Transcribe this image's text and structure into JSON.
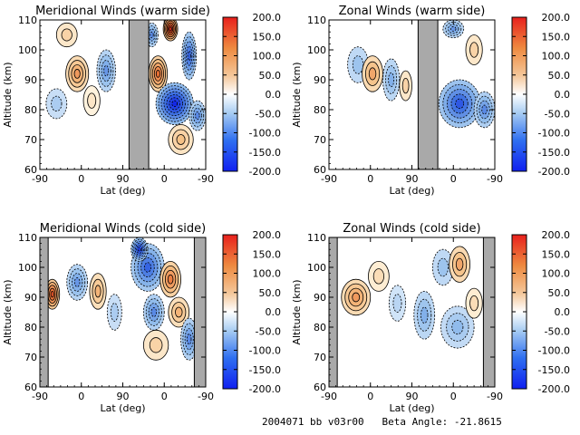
{
  "colors": {
    "positive": "#e8201c",
    "negative": "#1535f0",
    "gap": "#a9a9a9",
    "line": "#000000"
  },
  "colorbar": {
    "ticks": [
      "200.0",
      "150.0",
      "100.0",
      "50.0",
      "0.0",
      "-50.0",
      "-100.0",
      "-150.0",
      "-200.0"
    ],
    "range": [
      -200,
      200
    ]
  },
  "footer": "2004071 bb v03r00   Beta Angle: -21.8615",
  "chart_data": [
    {
      "type": "heatmap",
      "title": "Meridional Winds (warm side)",
      "xlabel": "Lat (deg)",
      "ylabel": "Altitude (km)",
      "xticks": [
        "-90",
        "0",
        "90",
        "0",
        "-90"
      ],
      "yticks": [
        "60",
        "70",
        "80",
        "90",
        "100",
        "110"
      ],
      "ylim": [
        60,
        110
      ],
      "clim": [
        -200,
        200
      ],
      "gap_regions": [
        [
          4.3,
          5.25
        ]
      ],
      "blobs": [
        {
          "x": 1.8,
          "y": 92,
          "rx": 0.55,
          "ry": 6,
          "v": 110
        },
        {
          "x": 3.2,
          "y": 93,
          "rx": 0.45,
          "ry": 7,
          "v": -110
        },
        {
          "x": 0.8,
          "y": 82,
          "rx": 0.5,
          "ry": 5,
          "v": -60
        },
        {
          "x": 1.3,
          "y": 105,
          "rx": 0.5,
          "ry": 4,
          "v": 60
        },
        {
          "x": 2.5,
          "y": 83,
          "rx": 0.4,
          "ry": 5,
          "v": 40
        },
        {
          "x": 6.3,
          "y": 107,
          "rx": 0.35,
          "ry": 4,
          "v": 190
        },
        {
          "x": 5.7,
          "y": 92,
          "rx": 0.45,
          "ry": 6,
          "v": 140
        },
        {
          "x": 6.5,
          "y": 82,
          "rx": 0.9,
          "ry": 7,
          "v": -200
        },
        {
          "x": 7.2,
          "y": 98,
          "rx": 0.35,
          "ry": 8,
          "v": -150
        },
        {
          "x": 6.8,
          "y": 70,
          "rx": 0.6,
          "ry": 5,
          "v": 80
        },
        {
          "x": 5.4,
          "y": 105,
          "rx": 0.3,
          "ry": 4,
          "v": -120
        },
        {
          "x": 7.6,
          "y": 78,
          "rx": 0.4,
          "ry": 5,
          "v": -120
        }
      ]
    },
    {
      "type": "heatmap",
      "title": "Zonal Winds (warm side)",
      "xlabel": "Lat (deg)",
      "ylabel": "Altitude (km)",
      "xticks": [
        "-90",
        "0",
        "90",
        "0",
        "-90"
      ],
      "yticks": [
        "60",
        "70",
        "80",
        "90",
        "100",
        "110"
      ],
      "ylim": [
        60,
        110
      ],
      "clim": [
        -200,
        200
      ],
      "gap_regions": [
        [
          4.3,
          5.25
        ]
      ],
      "blobs": [
        {
          "x": 1.4,
          "y": 95,
          "rx": 0.5,
          "ry": 6,
          "v": -70
        },
        {
          "x": 2.1,
          "y": 92,
          "rx": 0.5,
          "ry": 6,
          "v": 100
        },
        {
          "x": 3.0,
          "y": 90,
          "rx": 0.4,
          "ry": 7,
          "v": -90
        },
        {
          "x": 3.7,
          "y": 88,
          "rx": 0.3,
          "ry": 5,
          "v": 60
        },
        {
          "x": 6.3,
          "y": 82,
          "rx": 1.0,
          "ry": 8,
          "v": -160
        },
        {
          "x": 6.0,
          "y": 107,
          "rx": 0.5,
          "ry": 3,
          "v": -110
        },
        {
          "x": 7.0,
          "y": 100,
          "rx": 0.4,
          "ry": 5,
          "v": 60
        },
        {
          "x": 7.5,
          "y": 80,
          "rx": 0.5,
          "ry": 6,
          "v": -120
        }
      ]
    },
    {
      "type": "heatmap",
      "title": "Meridional Winds (cold side)",
      "xlabel": "Lat (deg)",
      "ylabel": "Altitude (km)",
      "xticks": [
        "-90",
        "0",
        "90",
        "0",
        "-90"
      ],
      "yticks": [
        "60",
        "70",
        "80",
        "90",
        "100",
        "110"
      ],
      "ylim": [
        60,
        110
      ],
      "clim": [
        -200,
        200
      ],
      "gap_regions": [
        [
          0,
          0.4
        ],
        [
          7.45,
          8
        ]
      ],
      "blobs": [
        {
          "x": 0.6,
          "y": 91,
          "rx": 0.35,
          "ry": 5,
          "v": 160
        },
        {
          "x": 1.8,
          "y": 95,
          "rx": 0.5,
          "ry": 6,
          "v": -110
        },
        {
          "x": 2.8,
          "y": 92,
          "rx": 0.4,
          "ry": 6,
          "v": 90
        },
        {
          "x": 3.6,
          "y": 85,
          "rx": 0.35,
          "ry": 6,
          "v": -60
        },
        {
          "x": 5.2,
          "y": 100,
          "rx": 0.8,
          "ry": 8,
          "v": -150
        },
        {
          "x": 5.5,
          "y": 85,
          "rx": 0.5,
          "ry": 6,
          "v": -120
        },
        {
          "x": 6.3,
          "y": 96,
          "rx": 0.5,
          "ry": 6,
          "v": 130
        },
        {
          "x": 6.7,
          "y": 85,
          "rx": 0.5,
          "ry": 5,
          "v": 90
        },
        {
          "x": 7.2,
          "y": 76,
          "rx": 0.4,
          "ry": 7,
          "v": -120
        },
        {
          "x": 5.6,
          "y": 74,
          "rx": 0.6,
          "ry": 5,
          "v": 60
        },
        {
          "x": 4.8,
          "y": 106,
          "rx": 0.4,
          "ry": 4,
          "v": -180
        }
      ]
    },
    {
      "type": "heatmap",
      "title": "Zonal Winds (cold side)",
      "xlabel": "Lat (deg)",
      "ylabel": "Altitude (km)",
      "xticks": [
        "-90",
        "0",
        "90",
        "0",
        "-90"
      ],
      "yticks": [
        "60",
        "70",
        "80",
        "90",
        "100",
        "110"
      ],
      "ylim": [
        60,
        110
      ],
      "clim": [
        -200,
        200
      ],
      "gap_regions": [
        [
          0,
          0.4
        ],
        [
          7.45,
          8
        ]
      ],
      "blobs": [
        {
          "x": 1.3,
          "y": 90,
          "rx": 0.7,
          "ry": 6,
          "v": 110
        },
        {
          "x": 2.4,
          "y": 97,
          "rx": 0.5,
          "ry": 5,
          "v": 50
        },
        {
          "x": 3.3,
          "y": 88,
          "rx": 0.4,
          "ry": 6,
          "v": -50
        },
        {
          "x": 4.6,
          "y": 84,
          "rx": 0.5,
          "ry": 8,
          "v": -90
        },
        {
          "x": 5.5,
          "y": 100,
          "rx": 0.5,
          "ry": 6,
          "v": -70
        },
        {
          "x": 6.3,
          "y": 101,
          "rx": 0.5,
          "ry": 6,
          "v": 100
        },
        {
          "x": 6.2,
          "y": 80,
          "rx": 0.8,
          "ry": 7,
          "v": -80
        },
        {
          "x": 7.0,
          "y": 88,
          "rx": 0.4,
          "ry": 5,
          "v": 50
        }
      ]
    }
  ]
}
